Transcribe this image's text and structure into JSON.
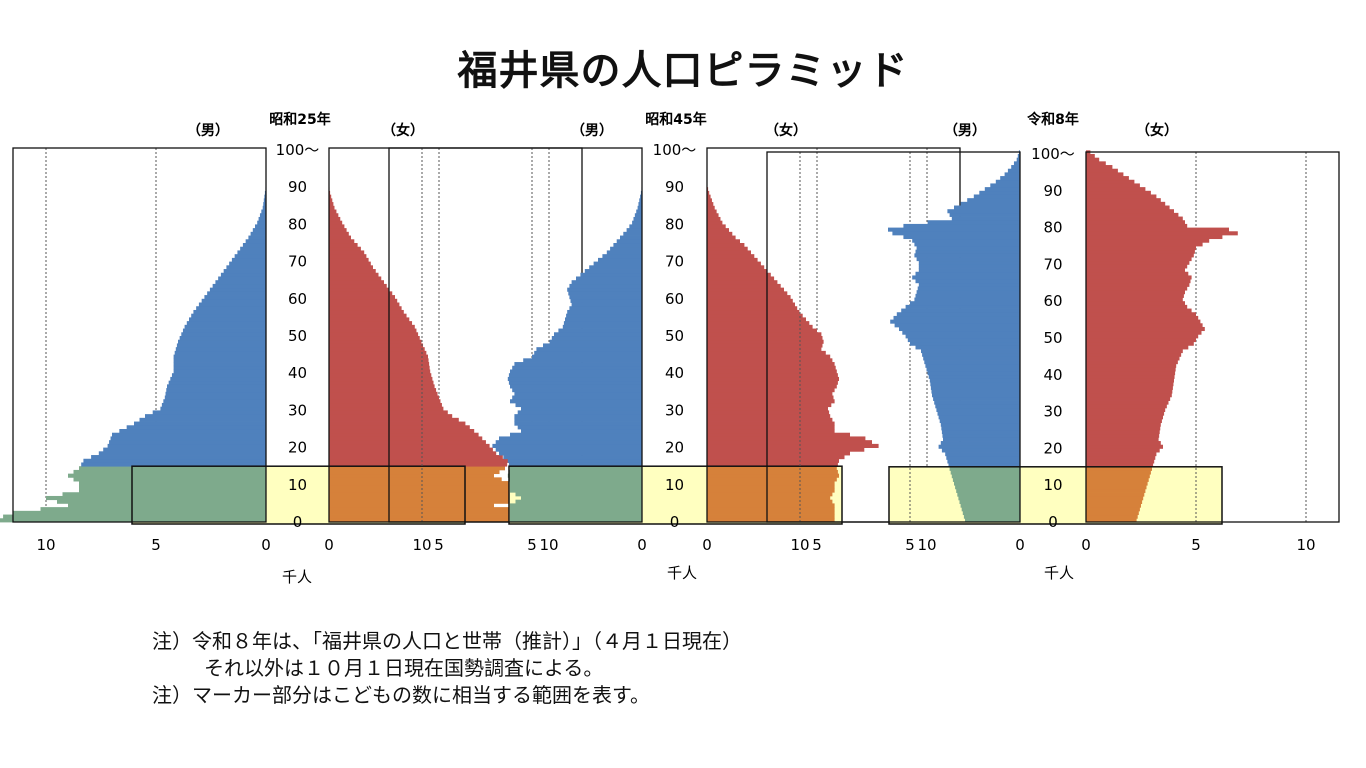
{
  "title": "福井県の人口ピラミッド",
  "notes": [
    "注）令和８年は、「福井県の人口と世帯（推計）」（４月１日現在）",
    "それ以外は１０月１日現在国勢調査による。",
    "注）マーカー部分はこどもの数に相当する範囲を表す。"
  ],
  "colors": {
    "male": "#4f81bd",
    "female": "#c0504d",
    "male_highlight": "#7eaa8c",
    "female_highlight": "#d6813a",
    "highlight_band": "#ffffc0"
  },
  "chart_data": [
    {
      "type": "bar",
      "title": "昭和25年",
      "male_label": "（男）",
      "female_label": "（女）",
      "unit_label": "千人",
      "age_ticks": [
        "0",
        "10",
        "20",
        "30",
        "40",
        "50",
        "60",
        "70",
        "80",
        "90",
        "100～"
      ],
      "x_ticks": [
        "10",
        "5",
        "0",
        "0",
        "5",
        "10"
      ],
      "xlim": [
        0,
        11.5
      ],
      "highlight_age_range": [
        0,
        15
      ],
      "male_anchors": [
        [
          0,
          12.4
        ],
        [
          2,
          11.5
        ],
        [
          4,
          9
        ],
        [
          6,
          10
        ],
        [
          8,
          8.5
        ],
        [
          10,
          8.5
        ],
        [
          12,
          9
        ],
        [
          14,
          8.5
        ],
        [
          16,
          8.3
        ],
        [
          18,
          7.6
        ],
        [
          20,
          7.2
        ],
        [
          23,
          7
        ],
        [
          26,
          6
        ],
        [
          28,
          5.5
        ],
        [
          30,
          4.8
        ],
        [
          33,
          4.6
        ],
        [
          36,
          4.5
        ],
        [
          40,
          4.2
        ],
        [
          44,
          4.2
        ],
        [
          48,
          4
        ],
        [
          52,
          3.7
        ],
        [
          56,
          3.3
        ],
        [
          60,
          2.8
        ],
        [
          64,
          2.3
        ],
        [
          68,
          1.8
        ],
        [
          72,
          1.3
        ],
        [
          76,
          0.8
        ],
        [
          80,
          0.4
        ],
        [
          84,
          0.15
        ],
        [
          88,
          0.05
        ],
        [
          90,
          0
        ]
      ],
      "female_anchors": [
        [
          0,
          11
        ],
        [
          2,
          10
        ],
        [
          4,
          7.5
        ],
        [
          6,
          9
        ],
        [
          8,
          8.5
        ],
        [
          10,
          8.2
        ],
        [
          12,
          7.5
        ],
        [
          14,
          8
        ],
        [
          16,
          8.2
        ],
        [
          18,
          7.6
        ],
        [
          20,
          7.3
        ],
        [
          23,
          6.8
        ],
        [
          26,
          6.2
        ],
        [
          28,
          5.6
        ],
        [
          30,
          5.2
        ],
        [
          33,
          5
        ],
        [
          36,
          4.8
        ],
        [
          40,
          4.6
        ],
        [
          44,
          4.5
        ],
        [
          48,
          4.2
        ],
        [
          52,
          3.9
        ],
        [
          56,
          3.4
        ],
        [
          60,
          3
        ],
        [
          64,
          2.5
        ],
        [
          68,
          2
        ],
        [
          72,
          1.6
        ],
        [
          76,
          1
        ],
        [
          80,
          0.6
        ],
        [
          84,
          0.25
        ],
        [
          88,
          0.05
        ],
        [
          90,
          0
        ]
      ]
    },
    {
      "type": "bar",
      "title": "昭和45年",
      "male_label": "（男）",
      "female_label": "（女）",
      "unit_label": "千人",
      "age_ticks": [
        "0",
        "10",
        "20",
        "30",
        "40",
        "50",
        "60",
        "70",
        "80",
        "90",
        "100～"
      ],
      "x_ticks": [
        "10",
        "5",
        "0",
        "0",
        "5",
        "10"
      ],
      "xlim": [
        0,
        11.5
      ],
      "highlight_age_range": [
        0,
        15
      ],
      "male_anchors": [
        [
          0,
          6
        ],
        [
          4,
          6
        ],
        [
          6,
          5.5
        ],
        [
          8,
          6
        ],
        [
          10,
          6
        ],
        [
          12,
          6.1
        ],
        [
          14,
          6
        ],
        [
          16,
          6.1
        ],
        [
          18,
          6.5
        ],
        [
          20,
          6.8
        ],
        [
          22,
          6.5
        ],
        [
          24,
          5.5
        ],
        [
          26,
          5.8
        ],
        [
          28,
          5.8
        ],
        [
          30,
          5.5
        ],
        [
          32,
          6
        ],
        [
          34,
          5.8
        ],
        [
          36,
          6
        ],
        [
          38,
          6.1
        ],
        [
          40,
          6
        ],
        [
          42,
          5.8
        ],
        [
          44,
          5
        ],
        [
          46,
          4.8
        ],
        [
          48,
          4.2
        ],
        [
          50,
          4
        ],
        [
          52,
          3.6
        ],
        [
          54,
          3.5
        ],
        [
          56,
          3.4
        ],
        [
          58,
          3.2
        ],
        [
          60,
          3.3
        ],
        [
          62,
          3.4
        ],
        [
          64,
          3.2
        ],
        [
          66,
          2.8
        ],
        [
          68,
          2.4
        ],
        [
          70,
          2
        ],
        [
          72,
          1.6
        ],
        [
          74,
          1.3
        ],
        [
          76,
          1
        ],
        [
          78,
          0.7
        ],
        [
          80,
          0.45
        ],
        [
          84,
          0.2
        ],
        [
          88,
          0.05
        ],
        [
          90,
          0
        ]
      ],
      "female_anchors": [
        [
          0,
          5.8
        ],
        [
          4,
          5.8
        ],
        [
          6,
          5.6
        ],
        [
          8,
          5.8
        ],
        [
          10,
          5.8
        ],
        [
          12,
          6
        ],
        [
          14,
          5.9
        ],
        [
          16,
          6
        ],
        [
          18,
          6.5
        ],
        [
          20,
          7.8
        ],
        [
          22,
          7.2
        ],
        [
          24,
          5.8
        ],
        [
          26,
          5.8
        ],
        [
          28,
          5.6
        ],
        [
          30,
          5.5
        ],
        [
          32,
          5.8
        ],
        [
          34,
          5.7
        ],
        [
          36,
          5.9
        ],
        [
          38,
          6
        ],
        [
          40,
          5.9
        ],
        [
          42,
          5.8
        ],
        [
          44,
          5.6
        ],
        [
          46,
          5.2
        ],
        [
          48,
          5.3
        ],
        [
          50,
          5.2
        ],
        [
          52,
          4.8
        ],
        [
          54,
          4.5
        ],
        [
          56,
          4.2
        ],
        [
          58,
          4
        ],
        [
          60,
          3.8
        ],
        [
          62,
          3.5
        ],
        [
          64,
          3.2
        ],
        [
          66,
          2.9
        ],
        [
          68,
          2.6
        ],
        [
          70,
          2.3
        ],
        [
          72,
          2
        ],
        [
          74,
          1.7
        ],
        [
          76,
          1.3
        ],
        [
          78,
          1
        ],
        [
          80,
          0.7
        ],
        [
          84,
          0.35
        ],
        [
          88,
          0.1
        ],
        [
          90,
          0
        ]
      ]
    },
    {
      "type": "bar",
      "title": "令和8年",
      "male_label": "（男）",
      "female_label": "（女）",
      "unit_label": "千人",
      "age_ticks": [
        "0",
        "10",
        "20",
        "30",
        "40",
        "50",
        "60",
        "70",
        "80",
        "90",
        "100～"
      ],
      "x_ticks": [
        "10",
        "5",
        "0",
        "0",
        "5",
        "10"
      ],
      "xlim": [
        0,
        11.5
      ],
      "highlight_age_range": [
        0,
        15
      ],
      "male_anchors": [
        [
          0,
          2.5
        ],
        [
          4,
          2.7
        ],
        [
          8,
          2.9
        ],
        [
          12,
          3.1
        ],
        [
          16,
          3.3
        ],
        [
          18,
          3.4
        ],
        [
          20,
          3.7
        ],
        [
          22,
          3.5
        ],
        [
          26,
          3.6
        ],
        [
          30,
          3.8
        ],
        [
          34,
          4
        ],
        [
          38,
          4.1
        ],
        [
          42,
          4.3
        ],
        [
          46,
          4.5
        ],
        [
          48,
          5
        ],
        [
          50,
          5.2
        ],
        [
          52,
          5.5
        ],
        [
          54,
          5.9
        ],
        [
          56,
          5.6
        ],
        [
          58,
          5.2
        ],
        [
          60,
          4.8
        ],
        [
          62,
          4.7
        ],
        [
          64,
          4.6
        ],
        [
          66,
          4.9
        ],
        [
          68,
          4.6
        ],
        [
          70,
          4.6
        ],
        [
          72,
          4.8
        ],
        [
          74,
          4.7
        ],
        [
          76,
          4.9
        ],
        [
          77,
          5.3
        ],
        [
          78,
          5.8
        ],
        [
          79,
          6
        ],
        [
          80,
          5.3
        ],
        [
          82,
          3.1
        ],
        [
          84,
          3.3
        ],
        [
          86,
          2.7
        ],
        [
          88,
          2.1
        ],
        [
          90,
          1.6
        ],
        [
          92,
          1.1
        ],
        [
          94,
          0.7
        ],
        [
          96,
          0.4
        ],
        [
          98,
          0.15
        ],
        [
          100,
          0.05
        ]
      ],
      "female_anchors": [
        [
          0,
          2.3
        ],
        [
          4,
          2.5
        ],
        [
          8,
          2.7
        ],
        [
          12,
          2.9
        ],
        [
          16,
          3.1
        ],
        [
          18,
          3.2
        ],
        [
          20,
          3.5
        ],
        [
          22,
          3.3
        ],
        [
          26,
          3.4
        ],
        [
          30,
          3.6
        ],
        [
          34,
          3.9
        ],
        [
          38,
          4
        ],
        [
          42,
          4.1
        ],
        [
          46,
          4.4
        ],
        [
          48,
          4.9
        ],
        [
          50,
          5.1
        ],
        [
          52,
          5.4
        ],
        [
          54,
          5.2
        ],
        [
          56,
          5
        ],
        [
          58,
          4.6
        ],
        [
          60,
          4.4
        ],
        [
          62,
          4.5
        ],
        [
          64,
          4.7
        ],
        [
          66,
          4.8
        ],
        [
          68,
          4.5
        ],
        [
          70,
          4.7
        ],
        [
          72,
          4.9
        ],
        [
          74,
          5
        ],
        [
          76,
          5.6
        ],
        [
          77,
          6.2
        ],
        [
          78,
          6.9
        ],
        [
          79,
          6.5
        ],
        [
          80,
          4.6
        ],
        [
          82,
          4.4
        ],
        [
          84,
          4
        ],
        [
          86,
          3.6
        ],
        [
          88,
          3.2
        ],
        [
          90,
          2.7
        ],
        [
          92,
          2.2
        ],
        [
          94,
          1.7
        ],
        [
          96,
          1.2
        ],
        [
          98,
          0.6
        ],
        [
          100,
          0.2
        ]
      ]
    }
  ]
}
